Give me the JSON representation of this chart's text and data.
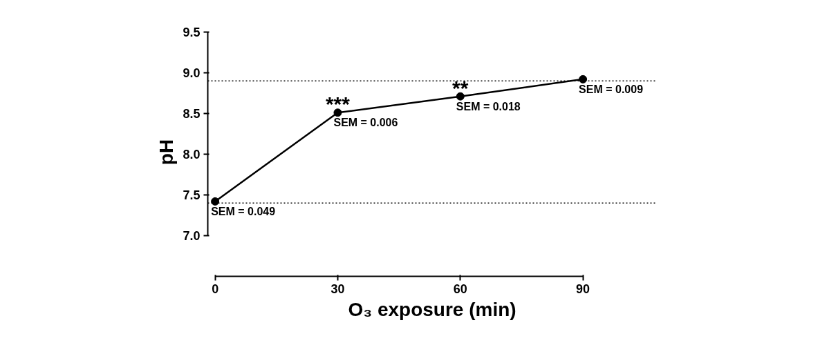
{
  "chart_data": {
    "type": "line",
    "xlabel": "O₃ exposure (min)",
    "ylabel": "pH",
    "x": [
      0,
      30,
      60,
      90
    ],
    "series": [
      {
        "color": "#000000",
        "values": [
          7.42,
          8.51,
          8.71,
          8.92
        ]
      }
    ],
    "xlim": [
      0,
      90
    ],
    "xticks": [
      0,
      30,
      60,
      90
    ],
    "ylim": [
      7.0,
      9.5
    ],
    "yticks": [
      {
        "value": 7,
        "label": "7.0"
      },
      7.5,
      {
        "value": 8,
        "label": "8.0"
      },
      8.5,
      {
        "value": 9,
        "label": "9.0"
      },
      9.5
    ],
    "marker": "circle",
    "line_style": "solid",
    "grid": false,
    "ref_lines": [
      {
        "axis": "y",
        "value": 8.9,
        "line_style": "dotted",
        "color": "#000000"
      },
      {
        "axis": "y",
        "value": 7.4,
        "line_style": "dotted",
        "color": "#000000"
      }
    ],
    "annotations": [
      {
        "text": "***",
        "x": 30,
        "y": 8.51
      },
      {
        "text": "**",
        "x": 60,
        "y": 8.71
      },
      {
        "text": "SEM = 0.049",
        "x": 0,
        "y": 7.42
      },
      {
        "text": "SEM = 0.006",
        "x": 30,
        "y": 8.51
      },
      {
        "text": "SEM = 0.018",
        "x": 60,
        "y": 8.71
      },
      {
        "text": "SEM = 0.009",
        "x": 90,
        "y": 8.92
      }
    ]
  }
}
